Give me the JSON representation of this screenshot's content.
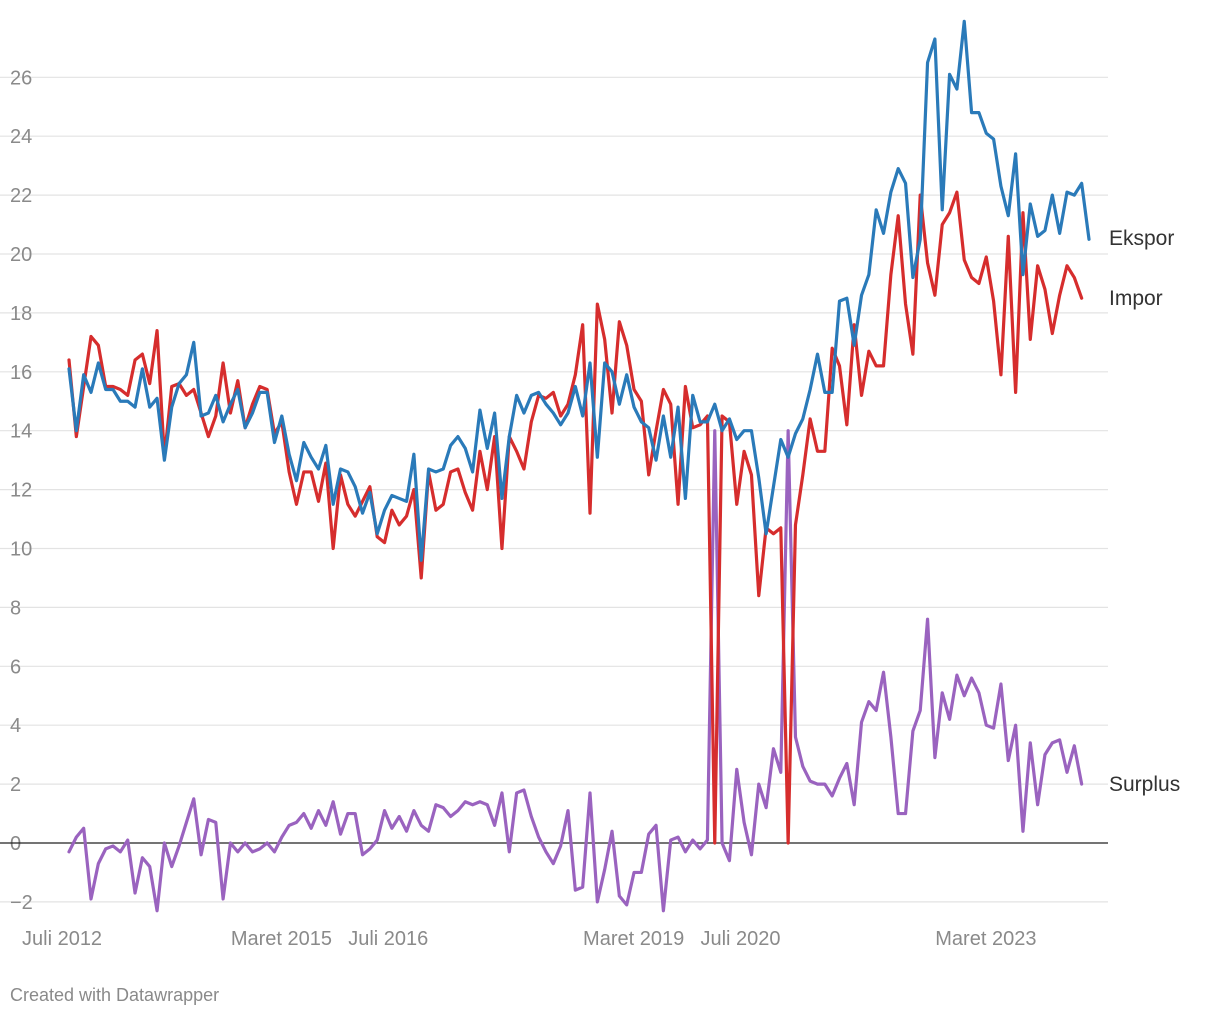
{
  "credit": "Created with Datawrapper",
  "chart_data": {
    "type": "line",
    "title": "",
    "xlabel": "",
    "ylabel": "",
    "ylim": [
      -2,
      28
    ],
    "yticks": [
      -2,
      0,
      2,
      4,
      6,
      8,
      10,
      12,
      14,
      16,
      18,
      20,
      22,
      24,
      26
    ],
    "ytick_labels": [
      "−2",
      "0",
      "2",
      "4",
      "6",
      "8",
      "10",
      "12",
      "14",
      "16",
      "18",
      "20",
      "22",
      "24",
      "26"
    ],
    "xtick_labels": [
      {
        "label": "Juli 2012",
        "index": 0
      },
      {
        "label": "Maret 2015",
        "index": 32
      },
      {
        "label": "Juli 2016",
        "index": 48
      },
      {
        "label": "Maret 2019",
        "index": 80
      },
      {
        "label": "Juli 2020",
        "index": 96
      },
      {
        "label": "Maret 2023",
        "index": 128
      }
    ],
    "grid": true,
    "zero_line": true,
    "legend": "direct labels at right end of lines",
    "colors": {
      "Ekspor": "#2a7ab9",
      "Impor": "#d62d2d",
      "Surplus": "#9a63bf",
      "grid": "#e3e3e3",
      "zero": "#222222"
    },
    "series": [
      {
        "name": "Ekspor",
        "values": [
          16.1,
          14.0,
          15.9,
          15.3,
          16.3,
          15.4,
          15.4,
          15.0,
          15.0,
          14.8,
          16.1,
          14.8,
          15.1,
          13.0,
          14.8,
          15.6,
          15.9,
          17.0,
          14.5,
          14.6,
          15.2,
          14.3,
          14.9,
          15.4,
          14.1,
          14.6,
          15.3,
          15.3,
          13.6,
          14.5,
          13.2,
          12.3,
          13.6,
          13.1,
          12.7,
          13.5,
          11.5,
          12.7,
          12.6,
          12.1,
          11.2,
          11.9,
          10.5,
          11.3,
          11.8,
          11.7,
          11.6,
          13.2,
          9.6,
          12.7,
          12.6,
          12.7,
          13.5,
          13.8,
          13.4,
          12.6,
          14.7,
          13.4,
          14.6,
          11.7,
          13.8,
          15.2,
          14.6,
          15.2,
          15.3,
          14.9,
          14.6,
          14.2,
          14.6,
          15.5,
          14.5,
          16.3,
          13.1,
          16.3,
          16.0,
          14.9,
          15.9,
          14.8,
          14.3,
          14.1,
          13.0,
          14.5,
          13.1,
          14.8,
          11.7,
          15.2,
          14.3,
          14.3,
          14.9,
          14.0,
          14.4,
          13.7,
          14.0,
          14.0,
          12.4,
          10.5,
          12.1,
          13.7,
          13.1,
          13.9,
          14.4,
          15.4,
          16.6,
          15.3,
          15.3,
          18.4,
          18.5,
          16.9,
          18.6,
          19.3,
          21.5,
          20.7,
          22.1,
          22.9,
          22.4,
          19.2,
          20.5,
          26.5,
          27.3,
          21.5,
          26.1,
          25.6,
          27.9,
          24.8,
          24.8,
          24.1,
          23.9,
          22.3,
          21.3,
          23.4,
          19.3,
          21.7,
          20.6,
          20.8,
          22.0,
          20.7,
          22.1,
          22.0,
          22.4,
          20.5
        ]
      },
      {
        "name": "Impor",
        "values": [
          16.4,
          13.8,
          15.5,
          17.2,
          16.9,
          15.5,
          15.5,
          15.4,
          15.2,
          16.4,
          16.6,
          15.6,
          17.4,
          13.1,
          15.5,
          15.6,
          15.2,
          15.4,
          14.6,
          13.8,
          14.5,
          16.3,
          14.6,
          15.7,
          14.1,
          14.9,
          15.5,
          15.4,
          13.9,
          14.3,
          12.6,
          11.5,
          12.6,
          12.6,
          11.6,
          12.9,
          10.0,
          12.5,
          11.5,
          11.1,
          11.6,
          12.1,
          10.4,
          10.2,
          11.3,
          10.8,
          11.1,
          12.0,
          9.0,
          12.6,
          11.3,
          11.5,
          12.6,
          12.7,
          11.9,
          11.3,
          13.3,
          12.0,
          13.8,
          10.0,
          13.8,
          13.3,
          12.7,
          14.3,
          15.2,
          15.1,
          15.3,
          14.5,
          14.9,
          15.9,
          17.6,
          11.2,
          18.3,
          17.1,
          14.6,
          17.7,
          16.9,
          15.4,
          15.0,
          12.5,
          14.0,
          15.4,
          14.9,
          11.5,
          15.5,
          14.1,
          14.2,
          14.5,
          0.0,
          14.5,
          14.3,
          11.5,
          13.3,
          12.5,
          8.4,
          10.7,
          10.5,
          10.7,
          0.0,
          10.8,
          12.5,
          14.4,
          13.3,
          13.3,
          16.8,
          16.2,
          14.2,
          17.6,
          15.2,
          16.7,
          16.2,
          16.2,
          19.3,
          21.3,
          18.3,
          16.6,
          22.0,
          19.7,
          18.6,
          21.0,
          21.4,
          22.1,
          19.8,
          19.2,
          19.0,
          19.9,
          18.4,
          15.9,
          20.6,
          15.3,
          21.4,
          17.1,
          19.6,
          18.8,
          17.3,
          18.6,
          19.6,
          19.2,
          18.5
        ]
      },
      {
        "name": "Surplus",
        "values": [
          -0.3,
          0.2,
          0.5,
          -1.9,
          -0.7,
          -0.2,
          -0.1,
          -0.3,
          0.1,
          -1.7,
          -0.5,
          -0.8,
          -2.3,
          0.0,
          -0.8,
          -0.1,
          0.7,
          1.5,
          -0.4,
          0.8,
          0.7,
          -1.9,
          0.0,
          -0.3,
          0.0,
          -0.3,
          -0.2,
          0.0,
          -0.3,
          0.2,
          0.6,
          0.7,
          1.0,
          0.5,
          1.1,
          0.6,
          1.4,
          0.3,
          1.0,
          1.0,
          -0.4,
          -0.2,
          0.1,
          1.1,
          0.5,
          0.9,
          0.4,
          1.1,
          0.6,
          0.4,
          1.3,
          1.2,
          0.9,
          1.1,
          1.4,
          1.3,
          1.4,
          1.3,
          0.6,
          1.7,
          -0.3,
          1.7,
          1.8,
          0.9,
          0.2,
          -0.3,
          -0.7,
          -0.1,
          1.1,
          -1.6,
          -1.5,
          1.7,
          -2.0,
          -0.9,
          0.4,
          -1.8,
          -2.1,
          -1.0,
          -1.0,
          0.3,
          0.6,
          -2.3,
          0.1,
          0.2,
          -0.3,
          0.1,
          -0.2,
          0.1,
          14.0,
          0.0,
          -0.6,
          2.5,
          0.7,
          -0.4,
          2.0,
          1.2,
          3.2,
          2.4,
          14.0,
          3.6,
          2.6,
          2.1,
          2.0,
          2.0,
          1.6,
          2.2,
          2.7,
          1.3,
          4.1,
          4.8,
          4.5,
          5.8,
          3.6,
          1.0,
          1.0,
          3.8,
          4.5,
          7.6,
          2.9,
          5.1,
          4.2,
          5.7,
          5.0,
          5.6,
          5.1,
          4.0,
          3.9,
          5.4,
          2.8,
          4.0,
          0.4,
          3.4,
          1.3,
          3.0,
          3.4,
          3.5,
          2.4,
          3.3,
          2.0
        ]
      }
    ]
  }
}
